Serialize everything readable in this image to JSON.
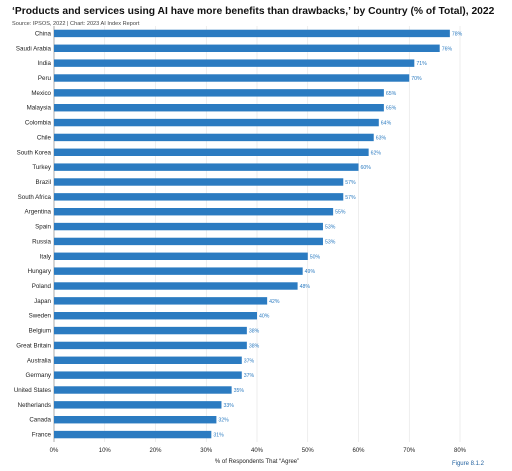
{
  "header": {
    "title": "‘Products and services using AI have more benefits than drawbacks,’ by Country (% of Total), 2022",
    "source": "Source: IPSOS, 2022 | Chart: 2023 AI Index Report"
  },
  "figure_label": "Figure 8.1.2",
  "colors": {
    "bar": "#2b7bc1",
    "label": "#2b7bc1",
    "grid": "#e2e2e2",
    "axis": "#9a9a9a",
    "text": "#222222"
  },
  "chart_data": {
    "type": "bar",
    "orientation": "horizontal",
    "title": "‘Products and services using AI have more benefits than drawbacks,’ by Country (% of Total), 2022",
    "xlabel": "% of Respondents That “Agree”",
    "ylabel": "",
    "xlim": [
      0,
      80
    ],
    "x_ticks": [
      0,
      10,
      20,
      30,
      40,
      50,
      60,
      70,
      80
    ],
    "x_tick_labels": [
      "0%",
      "10%",
      "20%",
      "30%",
      "40%",
      "50%",
      "60%",
      "70%",
      "80%"
    ],
    "grid": "vertical",
    "categories": [
      "China",
      "Saudi Arabia",
      "India",
      "Peru",
      "Mexico",
      "Malaysia",
      "Colombia",
      "Chile",
      "South Korea",
      "Turkey",
      "Brazil",
      "South Africa",
      "Argentina",
      "Spain",
      "Russia",
      "Italy",
      "Hungary",
      "Poland",
      "Japan",
      "Sweden",
      "Belgium",
      "Great Britain",
      "Australia",
      "Germany",
      "United States",
      "Netherlands",
      "Canada",
      "France"
    ],
    "values": [
      78,
      76,
      71,
      70,
      65,
      65,
      64,
      63,
      62,
      60,
      57,
      57,
      55,
      53,
      53,
      50,
      49,
      48,
      42,
      40,
      38,
      38,
      37,
      37,
      35,
      33,
      32,
      31
    ],
    "value_labels": [
      "78%",
      "76%",
      "71%",
      "70%",
      "65%",
      "65%",
      "64%",
      "63%",
      "62%",
      "60%",
      "57%",
      "57%",
      "55%",
      "53%",
      "53%",
      "50%",
      "49%",
      "48%",
      "42%",
      "40%",
      "38%",
      "38%",
      "37%",
      "37%",
      "35%",
      "33%",
      "32%",
      "31%"
    ]
  }
}
